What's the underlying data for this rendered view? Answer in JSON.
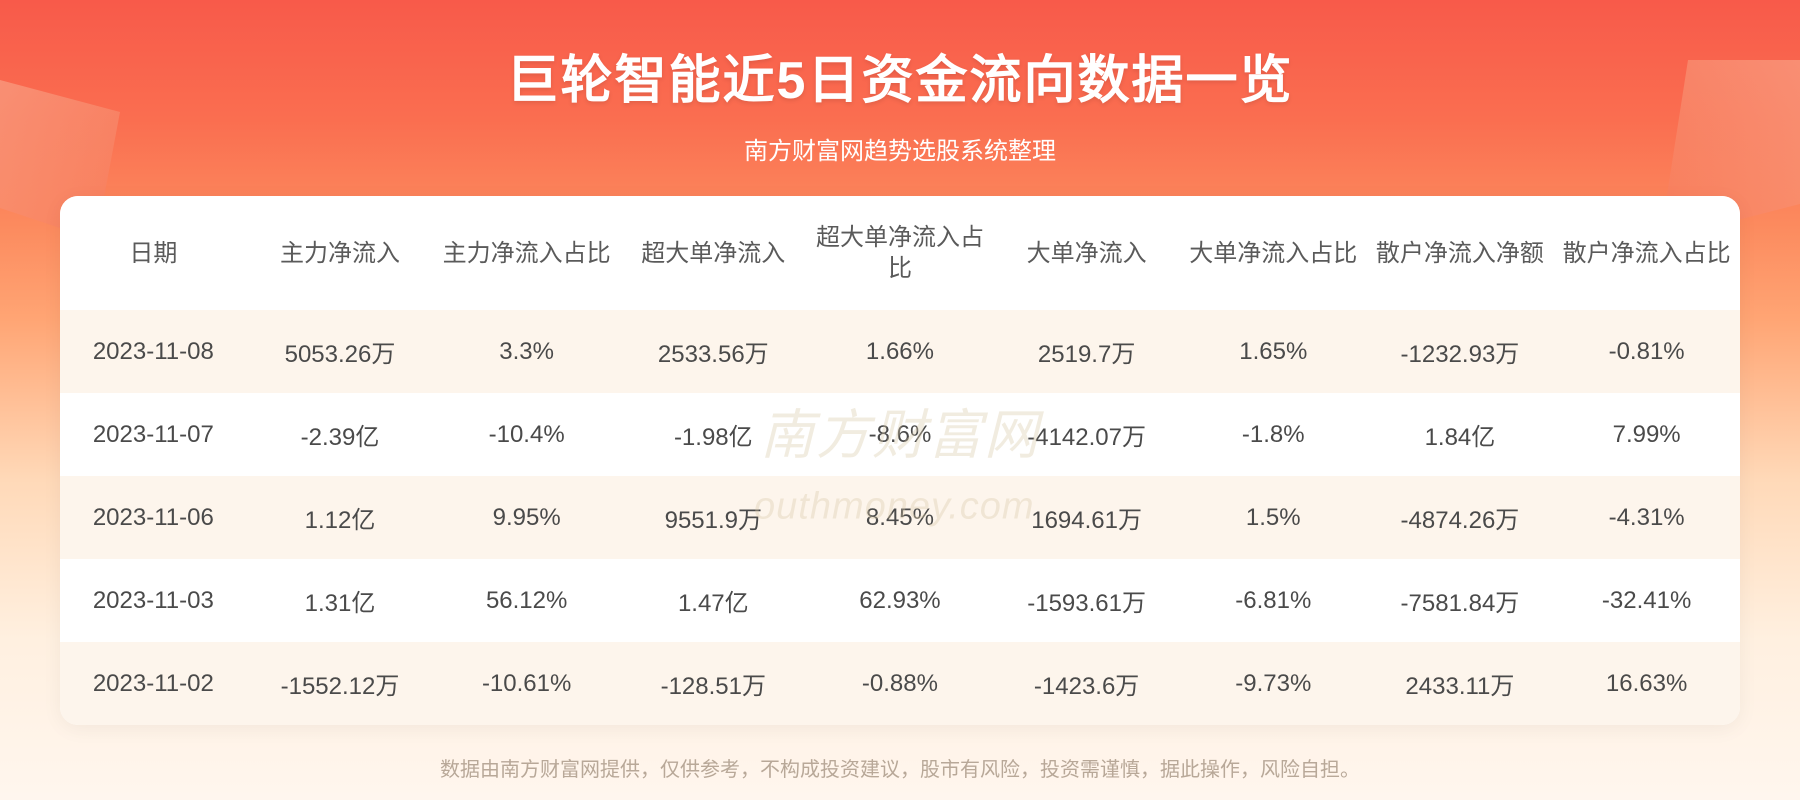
{
  "header": {
    "title": "巨轮智能近5日资金流向数据一览",
    "subtitle": "南方财富网趋势选股系统整理"
  },
  "table": {
    "columns": [
      "日期",
      "主力净流入",
      "主力净流入占比",
      "超大单净流入",
      "超大单净流入占比",
      "大单净流入",
      "大单净流入占比",
      "散户净流入净额",
      "散户净流入占比"
    ],
    "rows": [
      [
        "2023-11-08",
        "5053.26万",
        "3.3%",
        "2533.56万",
        "1.66%",
        "2519.7万",
        "1.65%",
        "-1232.93万",
        "-0.81%"
      ],
      [
        "2023-11-07",
        "-2.39亿",
        "-10.4%",
        "-1.98亿",
        "-8.6%",
        "-4142.07万",
        "-1.8%",
        "1.84亿",
        "7.99%"
      ],
      [
        "2023-11-06",
        "1.12亿",
        "9.95%",
        "9551.9万",
        "8.45%",
        "1694.61万",
        "1.5%",
        "-4874.26万",
        "-4.31%"
      ],
      [
        "2023-11-03",
        "1.31亿",
        "56.12%",
        "1.47亿",
        "62.93%",
        "-1593.61万",
        "-6.81%",
        "-7581.84万",
        "-32.41%"
      ],
      [
        "2023-11-02",
        "-1552.12万",
        "-10.61%",
        "-128.51万",
        "-0.88%",
        "-1423.6万",
        "-9.73%",
        "2433.11万",
        "16.63%"
      ]
    ]
  },
  "watermark": {
    "main": "南方财富网",
    "sub": "outhmoney.com"
  },
  "footer": {
    "disclaimer": "数据由南方财富网提供，仅供参考，不构成投资建议，股市有风险，投资需谨慎，据此操作，风险自担。"
  },
  "styling": {
    "banner_gradient_top": "#f85a4a",
    "banner_gradient_bottom": "#fff6ee",
    "title_color": "#ffffff",
    "title_fontsize": 52,
    "subtitle_fontsize": 24,
    "table_bg": "#ffffff",
    "table_border_radius": 18,
    "header_text_color": "#5a5a5a",
    "cell_text_color": "#4a4a4a",
    "cell_fontsize": 24,
    "row_odd_bg": "#fdf5ec",
    "row_even_bg": "#ffffff",
    "watermark_color": "#d9c9a8",
    "disclaimer_color": "#b8a898",
    "disclaimer_fontsize": 20
  }
}
